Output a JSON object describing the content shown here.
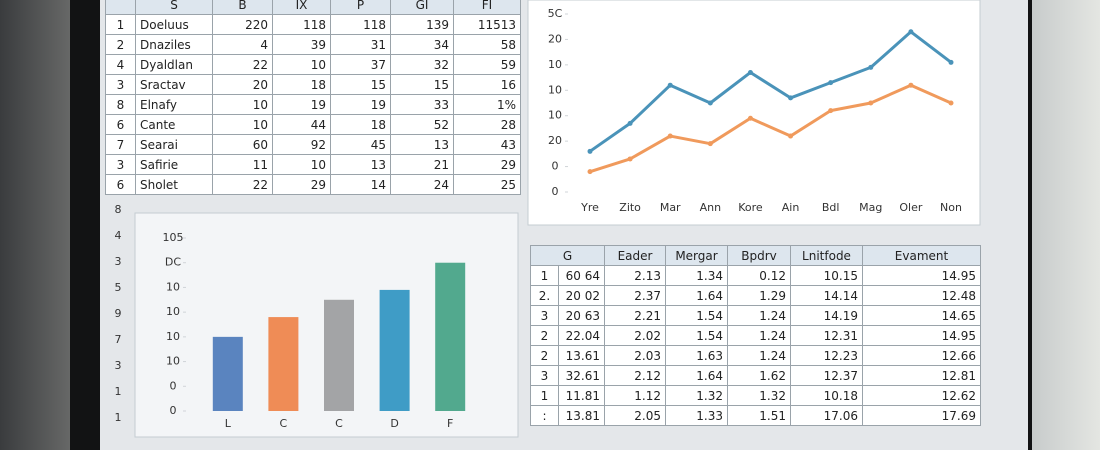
{
  "top_table": {
    "header": [
      "S",
      "B",
      "IX",
      "P",
      "GI",
      "FI"
    ],
    "rows": [
      [
        "1",
        "Doeluus",
        "220",
        "118",
        "118",
        "139",
        "11513"
      ],
      [
        "2",
        "Dnaziles",
        "4",
        "39",
        "31",
        "34",
        "58"
      ],
      [
        "4",
        "Dyaldlan",
        "22",
        "10",
        "37",
        "32",
        "59"
      ],
      [
        "3",
        "Sractav",
        "20",
        "18",
        "15",
        "15",
        "16"
      ],
      [
        "8",
        "Elnafy",
        "10",
        "19",
        "19",
        "33",
        "1%"
      ],
      [
        "6",
        "Cante",
        "10",
        "44",
        "18",
        "52",
        "28"
      ],
      [
        "7",
        "Searai",
        "60",
        "92",
        "45",
        "13",
        "43"
      ],
      [
        "3",
        "Safirie",
        "11",
        "10",
        "13",
        "21",
        "29"
      ],
      [
        "6",
        "Sholet",
        "22",
        "29",
        "14",
        "24",
        "25"
      ]
    ]
  },
  "left_margin": [
    "8",
    "4",
    "3",
    "5",
    "9",
    "7",
    "3",
    "1",
    "1"
  ],
  "chart_data": [
    {
      "type": "line",
      "categories": [
        "Yre",
        "Zito",
        "Mar",
        "Ann",
        "Kore",
        "Ain",
        "Bdl",
        "Mag",
        "Oler",
        "Non"
      ],
      "series": [
        {
          "color": "#4a93b9",
          "values": [
            16,
            27,
            42,
            35,
            47,
            37,
            43,
            49,
            63,
            51
          ]
        },
        {
          "color": "#f09a5c",
          "values": [
            8,
            13,
            22,
            19,
            29,
            22,
            32,
            35,
            42,
            35
          ]
        }
      ],
      "ylim": [
        0,
        70
      ],
      "yticks": [
        0,
        {
          "value": 10,
          "label": "0"
        },
        20,
        {
          "value": 30,
          "label": "10"
        },
        {
          "value": 40,
          "label": "10"
        },
        {
          "value": 50,
          "label": "10"
        },
        {
          "value": 60,
          "label": "20"
        },
        {
          "value": 70,
          "label": "5C"
        }
      ]
    },
    {
      "type": "bar",
      "categories": [
        "L",
        "C",
        "C",
        "D",
        "F"
      ],
      "values": [
        30,
        38,
        45,
        49,
        60
      ],
      "colors": [
        "#5a84bf",
        "#ef8c56",
        "#a3a4a6",
        "#3f9cc6",
        "#52a98e"
      ],
      "ylim": [
        0,
        70
      ],
      "yticks": [
        0,
        {
          "value": 10,
          "label": "0"
        },
        {
          "value": 20,
          "label": "10"
        },
        {
          "value": 30,
          "label": "10"
        },
        {
          "value": 40,
          "label": "10"
        },
        {
          "value": 50,
          "label": "10"
        },
        {
          "value": 60,
          "label": "DC"
        },
        {
          "value": 70,
          "label": "105"
        }
      ]
    }
  ],
  "bottom_table": {
    "header": [
      "G",
      "Eader",
      "Mergar",
      "Bpdrv",
      "Lnitfode",
      "Evament"
    ],
    "rows": [
      [
        "1",
        "60 64",
        "2.13",
        "1.34",
        "0.12",
        "10.15",
        "14.95"
      ],
      [
        "2.",
        "20 02",
        "2.37",
        "1.64",
        "1.29",
        "14.14",
        "12.48"
      ],
      [
        "3",
        "20 63",
        "2.21",
        "1.54",
        "1.24",
        "14.19",
        "14.65"
      ],
      [
        "2",
        "22.04",
        "2.02",
        "1.54",
        "1.24",
        "12.31",
        "14.95"
      ],
      [
        "2",
        "13.61",
        "2.03",
        "1.63",
        "1.24",
        "12.23",
        "12.66"
      ],
      [
        "3",
        "32.61",
        "2.12",
        "1.64",
        "1.62",
        "12.37",
        "12.81"
      ],
      [
        "1",
        "11.81",
        "1.12",
        "1.32",
        "1.32",
        "10.18",
        "12.62"
      ],
      [
        ":",
        "13.81",
        "2.05",
        "1.33",
        "1.51",
        "17.06",
        "17.69"
      ]
    ]
  }
}
